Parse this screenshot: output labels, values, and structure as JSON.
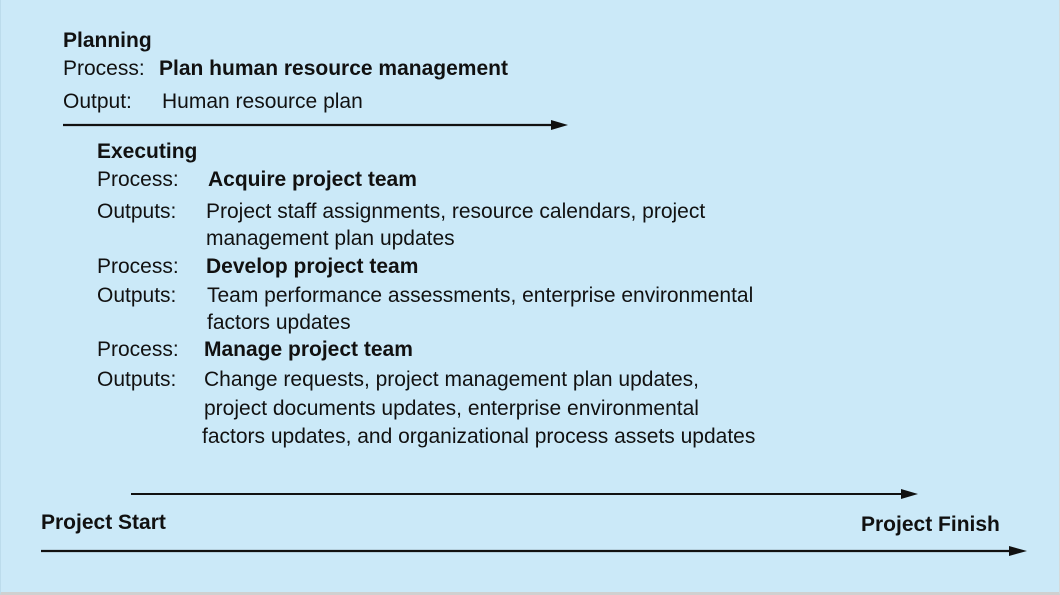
{
  "planning": {
    "heading": "Planning",
    "process_label": "Process:",
    "process_name": "Plan human resource management",
    "output_label": "Output:",
    "output_text": "Human resource plan"
  },
  "executing": {
    "heading": "Executing",
    "steps": [
      {
        "process_label": "Process:",
        "process_name": "Acquire project team",
        "outputs_label": "Outputs:",
        "outputs_lines": [
          "Project staff assignments, resource calendars, project",
          "management plan updates"
        ]
      },
      {
        "process_label": "Process:",
        "process_name": "Develop project team",
        "outputs_label": "Outputs:",
        "outputs_lines": [
          "Team performance assessments, enterprise environmental",
          "factors updates"
        ]
      },
      {
        "process_label": "Process:",
        "process_name": "Manage project team",
        "outputs_label": "Outputs:",
        "outputs_lines": [
          "Change requests, project management plan updates,",
          "project documents updates, enterprise environmental",
          "factors updates, and organizational process assets updates"
        ]
      }
    ]
  },
  "timeline": {
    "start_label": "Project Start",
    "finish_label": "Project Finish"
  },
  "colors": {
    "background": "#cbe9f8",
    "text": "#111111",
    "arrow": "#111111"
  }
}
